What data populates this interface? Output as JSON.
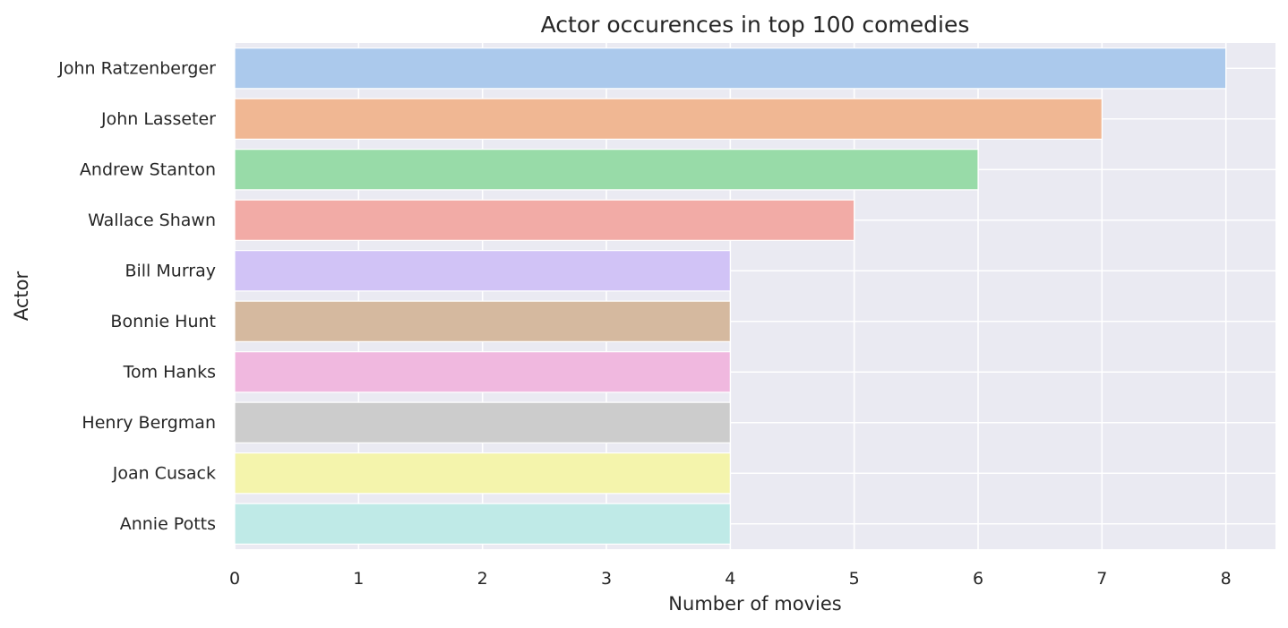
{
  "chart_data": {
    "type": "bar",
    "orientation": "horizontal",
    "title": "Actor occurences in top 100 comedies",
    "xlabel": "Number of movies",
    "ylabel": "Actor",
    "categories": [
      "John Ratzenberger",
      "John Lasseter",
      "Andrew Stanton",
      "Wallace Shawn",
      "Bill Murray",
      "Bonnie Hunt",
      "Tom Hanks",
      "Henry Bergman",
      "Joan Cusack",
      "Annie Potts"
    ],
    "values": [
      8,
      7,
      6,
      5,
      4,
      4,
      4,
      4,
      4,
      4
    ],
    "bar_colors": [
      "#abc9ec",
      "#f0b793",
      "#98dba8",
      "#f2aba6",
      "#d1c3f6",
      "#d5b99f",
      "#f0b8df",
      "#cccccc",
      "#f4f4ac",
      "#bfeae7"
    ],
    "xlim": [
      0,
      8.4
    ],
    "xticks": [
      0,
      1,
      2,
      3,
      4,
      5,
      6,
      7,
      8
    ],
    "grid": true,
    "background": "#eaeaf2",
    "grid_color": "#ffffff"
  }
}
